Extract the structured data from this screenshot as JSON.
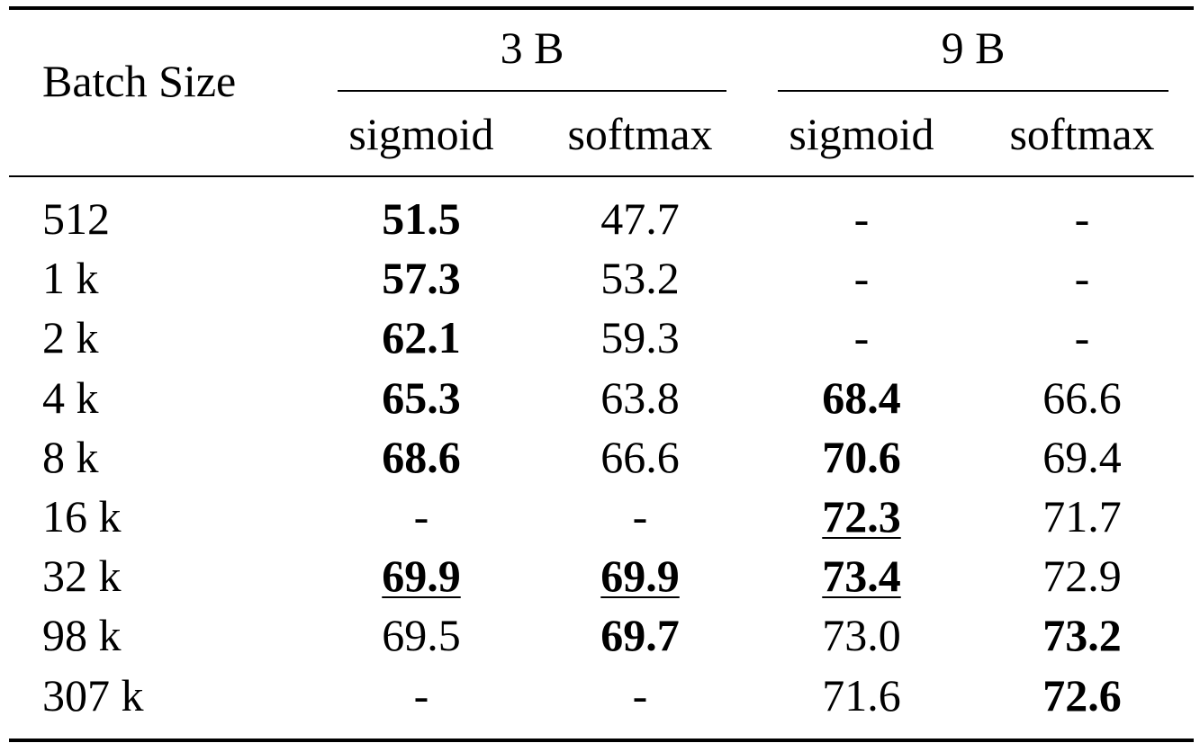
{
  "table": {
    "header": {
      "row_label": "Batch Size",
      "groups": [
        {
          "label": "3 B",
          "sub": [
            "sigmoid",
            "softmax"
          ]
        },
        {
          "label": "9 B",
          "sub": [
            "sigmoid",
            "softmax"
          ]
        }
      ]
    },
    "rows": [
      {
        "batch": "512",
        "cells": [
          {
            "v": "51.5",
            "b": true,
            "u": false
          },
          {
            "v": "47.7",
            "b": false,
            "u": false
          },
          {
            "v": "-",
            "b": false,
            "u": false
          },
          {
            "v": "-",
            "b": false,
            "u": false
          }
        ]
      },
      {
        "batch": "1 k",
        "cells": [
          {
            "v": "57.3",
            "b": true,
            "u": false
          },
          {
            "v": "53.2",
            "b": false,
            "u": false
          },
          {
            "v": "-",
            "b": false,
            "u": false
          },
          {
            "v": "-",
            "b": false,
            "u": false
          }
        ]
      },
      {
        "batch": "2 k",
        "cells": [
          {
            "v": "62.1",
            "b": true,
            "u": false
          },
          {
            "v": "59.3",
            "b": false,
            "u": false
          },
          {
            "v": "-",
            "b": false,
            "u": false
          },
          {
            "v": "-",
            "b": false,
            "u": false
          }
        ]
      },
      {
        "batch": "4 k",
        "cells": [
          {
            "v": "65.3",
            "b": true,
            "u": false
          },
          {
            "v": "63.8",
            "b": false,
            "u": false
          },
          {
            "v": "68.4",
            "b": true,
            "u": false
          },
          {
            "v": "66.6",
            "b": false,
            "u": false
          }
        ]
      },
      {
        "batch": "8 k",
        "cells": [
          {
            "v": "68.6",
            "b": true,
            "u": false
          },
          {
            "v": "66.6",
            "b": false,
            "u": false
          },
          {
            "v": "70.6",
            "b": true,
            "u": false
          },
          {
            "v": "69.4",
            "b": false,
            "u": false
          }
        ]
      },
      {
        "batch": "16 k",
        "cells": [
          {
            "v": "-",
            "b": false,
            "u": false
          },
          {
            "v": "-",
            "b": false,
            "u": false
          },
          {
            "v": "72.3",
            "b": true,
            "u": true
          },
          {
            "v": "71.7",
            "b": false,
            "u": false
          }
        ]
      },
      {
        "batch": "32 k",
        "cells": [
          {
            "v": "69.9",
            "b": true,
            "u": true
          },
          {
            "v": "69.9",
            "b": true,
            "u": true
          },
          {
            "v": "73.4",
            "b": true,
            "u": true
          },
          {
            "v": "72.9",
            "b": false,
            "u": false
          }
        ]
      },
      {
        "batch": "98 k",
        "cells": [
          {
            "v": "69.5",
            "b": false,
            "u": false
          },
          {
            "v": "69.7",
            "b": true,
            "u": false
          },
          {
            "v": "73.0",
            "b": false,
            "u": false
          },
          {
            "v": "73.2",
            "b": true,
            "u": false
          }
        ]
      },
      {
        "batch": "307 k",
        "cells": [
          {
            "v": "-",
            "b": false,
            "u": false
          },
          {
            "v": "-",
            "b": false,
            "u": false
          },
          {
            "v": "71.6",
            "b": false,
            "u": false
          },
          {
            "v": "72.6",
            "b": true,
            "u": false
          }
        ]
      }
    ]
  }
}
